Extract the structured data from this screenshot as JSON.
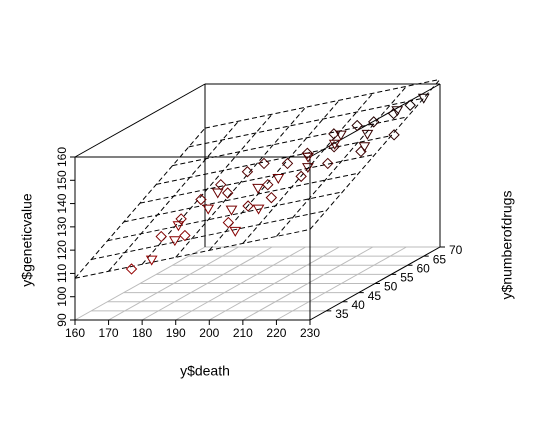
{
  "chart_data": {
    "type": "scatter3d",
    "xlabel": "y$death",
    "ylabel": "y$numberofdrugs",
    "zlabel": "y$geneticvalue",
    "xlim": [
      160,
      230
    ],
    "xticks": [
      160,
      170,
      180,
      190,
      200,
      210,
      220,
      230
    ],
    "ylim": [
      30,
      70
    ],
    "yticks": [
      35,
      40,
      45,
      50,
      55,
      60,
      65,
      70
    ],
    "zlim": [
      90,
      160
    ],
    "zticks": [
      90,
      100,
      110,
      120,
      130,
      140,
      150,
      160
    ],
    "highlight_3d": true,
    "regression_plane": true,
    "grid": true,
    "series": [
      {
        "marker": "triangle",
        "x": [
          178,
          182,
          185,
          190,
          195,
          200,
          205,
          210,
          215,
          220,
          225,
          222,
          200,
          188,
          230,
          212,
          218,
          207
        ],
        "y": [
          35,
          38,
          36,
          40,
          42,
          45,
          40,
          50,
          55,
          58,
          62,
          55,
          38,
          45,
          65,
          48,
          50,
          44
        ],
        "z": [
          112,
          118,
          126,
          130,
          128,
          135,
          130,
          140,
          150,
          148,
          155,
          145,
          122,
          133,
          158,
          146,
          150,
          140
        ]
      },
      {
        "marker": "diamond",
        "x": [
          172,
          176,
          180,
          183,
          186,
          190,
          192,
          195,
          198,
          200,
          202,
          205,
          208,
          210,
          212,
          215,
          218,
          220,
          222,
          196,
          185,
          203,
          214,
          225,
          226
        ],
        "y": [
          35,
          40,
          42,
          45,
          48,
          46,
          50,
          52,
          44,
          48,
          52,
          55,
          50,
          58,
          56,
          60,
          62,
          56,
          64,
          40,
          38,
          46,
          52,
          66,
          60
        ],
        "z": [
          108,
          118,
          124,
          130,
          134,
          132,
          138,
          140,
          128,
          134,
          140,
          142,
          136,
          148,
          144,
          150,
          150,
          142,
          152,
          124,
          120,
          130,
          140,
          154,
          146
        ]
      }
    ]
  }
}
